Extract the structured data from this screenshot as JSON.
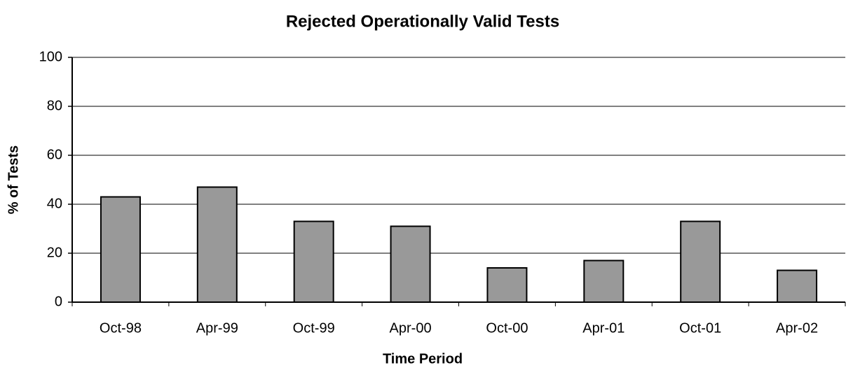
{
  "chart_data": {
    "type": "bar",
    "title": "Rejected Operationally Valid Tests",
    "x_label": "Time Period",
    "y_label": "% of Tests",
    "categories": [
      "Oct-98",
      "Apr-99",
      "Oct-99",
      "Apr-00",
      "Oct-00",
      "Apr-01",
      "Oct-01",
      "Apr-02"
    ],
    "values": [
      43,
      47,
      33,
      31,
      14,
      17,
      33,
      13
    ],
    "color": "#999999",
    "ylim": [
      0,
      100
    ],
    "yticks": [
      0,
      20,
      40,
      60,
      80,
      100
    ],
    "grid": true
  }
}
